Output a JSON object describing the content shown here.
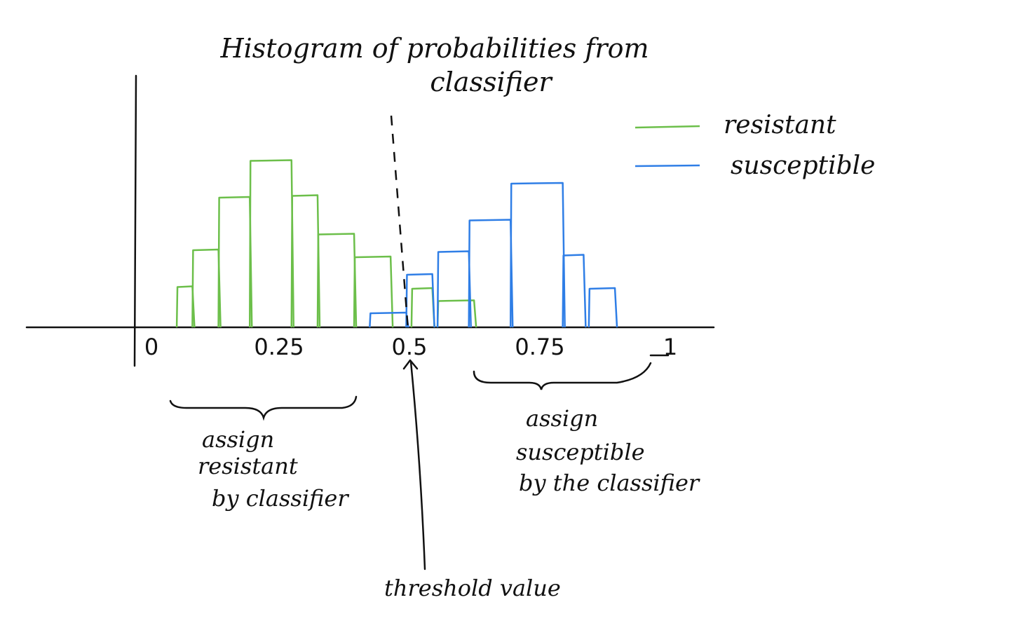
{
  "chart_data": {
    "type": "bar",
    "title": "Histogram of probabilities from classifier",
    "title_lines": [
      "Histogram of probabilities from",
      "classifier"
    ],
    "x_ticks": [
      {
        "label": "0",
        "value": 0
      },
      {
        "label": "0.25",
        "value": 0.25
      },
      {
        "label": "0.5",
        "value": 0.5
      },
      {
        "label": "0.75",
        "value": 0.75
      },
      {
        "label": "1",
        "value": 1
      }
    ],
    "xlim": [
      0,
      1
    ],
    "ylim": [
      0,
      10
    ],
    "legend_position": "top-right",
    "series": [
      {
        "name": "resistant",
        "color": "#6cbf4a",
        "bins": [
          {
            "x0": 0.07,
            "x1": 0.1,
            "value": 2.3
          },
          {
            "x0": 0.1,
            "x1": 0.15,
            "value": 4.4
          },
          {
            "x0": 0.15,
            "x1": 0.21,
            "value": 7.4
          },
          {
            "x0": 0.21,
            "x1": 0.29,
            "value": 9.5
          },
          {
            "x0": 0.29,
            "x1": 0.34,
            "value": 7.5
          },
          {
            "x0": 0.34,
            "x1": 0.41,
            "value": 5.3
          },
          {
            "x0": 0.41,
            "x1": 0.48,
            "value": 4.0
          },
          {
            "x0": 0.52,
            "x1": 0.56,
            "value": 2.2
          },
          {
            "x0": 0.57,
            "x1": 0.64,
            "value": 1.5
          }
        ]
      },
      {
        "name": "susceptible",
        "color": "#2f7ee6",
        "bins": [
          {
            "x0": 0.44,
            "x1": 0.51,
            "value": 0.8
          },
          {
            "x0": 0.51,
            "x1": 0.56,
            "value": 3.0
          },
          {
            "x0": 0.57,
            "x1": 0.63,
            "value": 4.3
          },
          {
            "x0": 0.63,
            "x1": 0.71,
            "value": 6.1
          },
          {
            "x0": 0.71,
            "x1": 0.81,
            "value": 8.2
          },
          {
            "x0": 0.81,
            "x1": 0.85,
            "value": 4.1
          },
          {
            "x0": 0.86,
            "x1": 0.91,
            "value": 2.2
          }
        ]
      }
    ],
    "threshold": {
      "value": 0.5,
      "label": "threshold value"
    },
    "annotations": {
      "left_brace": [
        "assign",
        "resistant",
        "by classifier"
      ],
      "right_brace": [
        "assign",
        "susceptible",
        "by the classifier"
      ]
    }
  }
}
